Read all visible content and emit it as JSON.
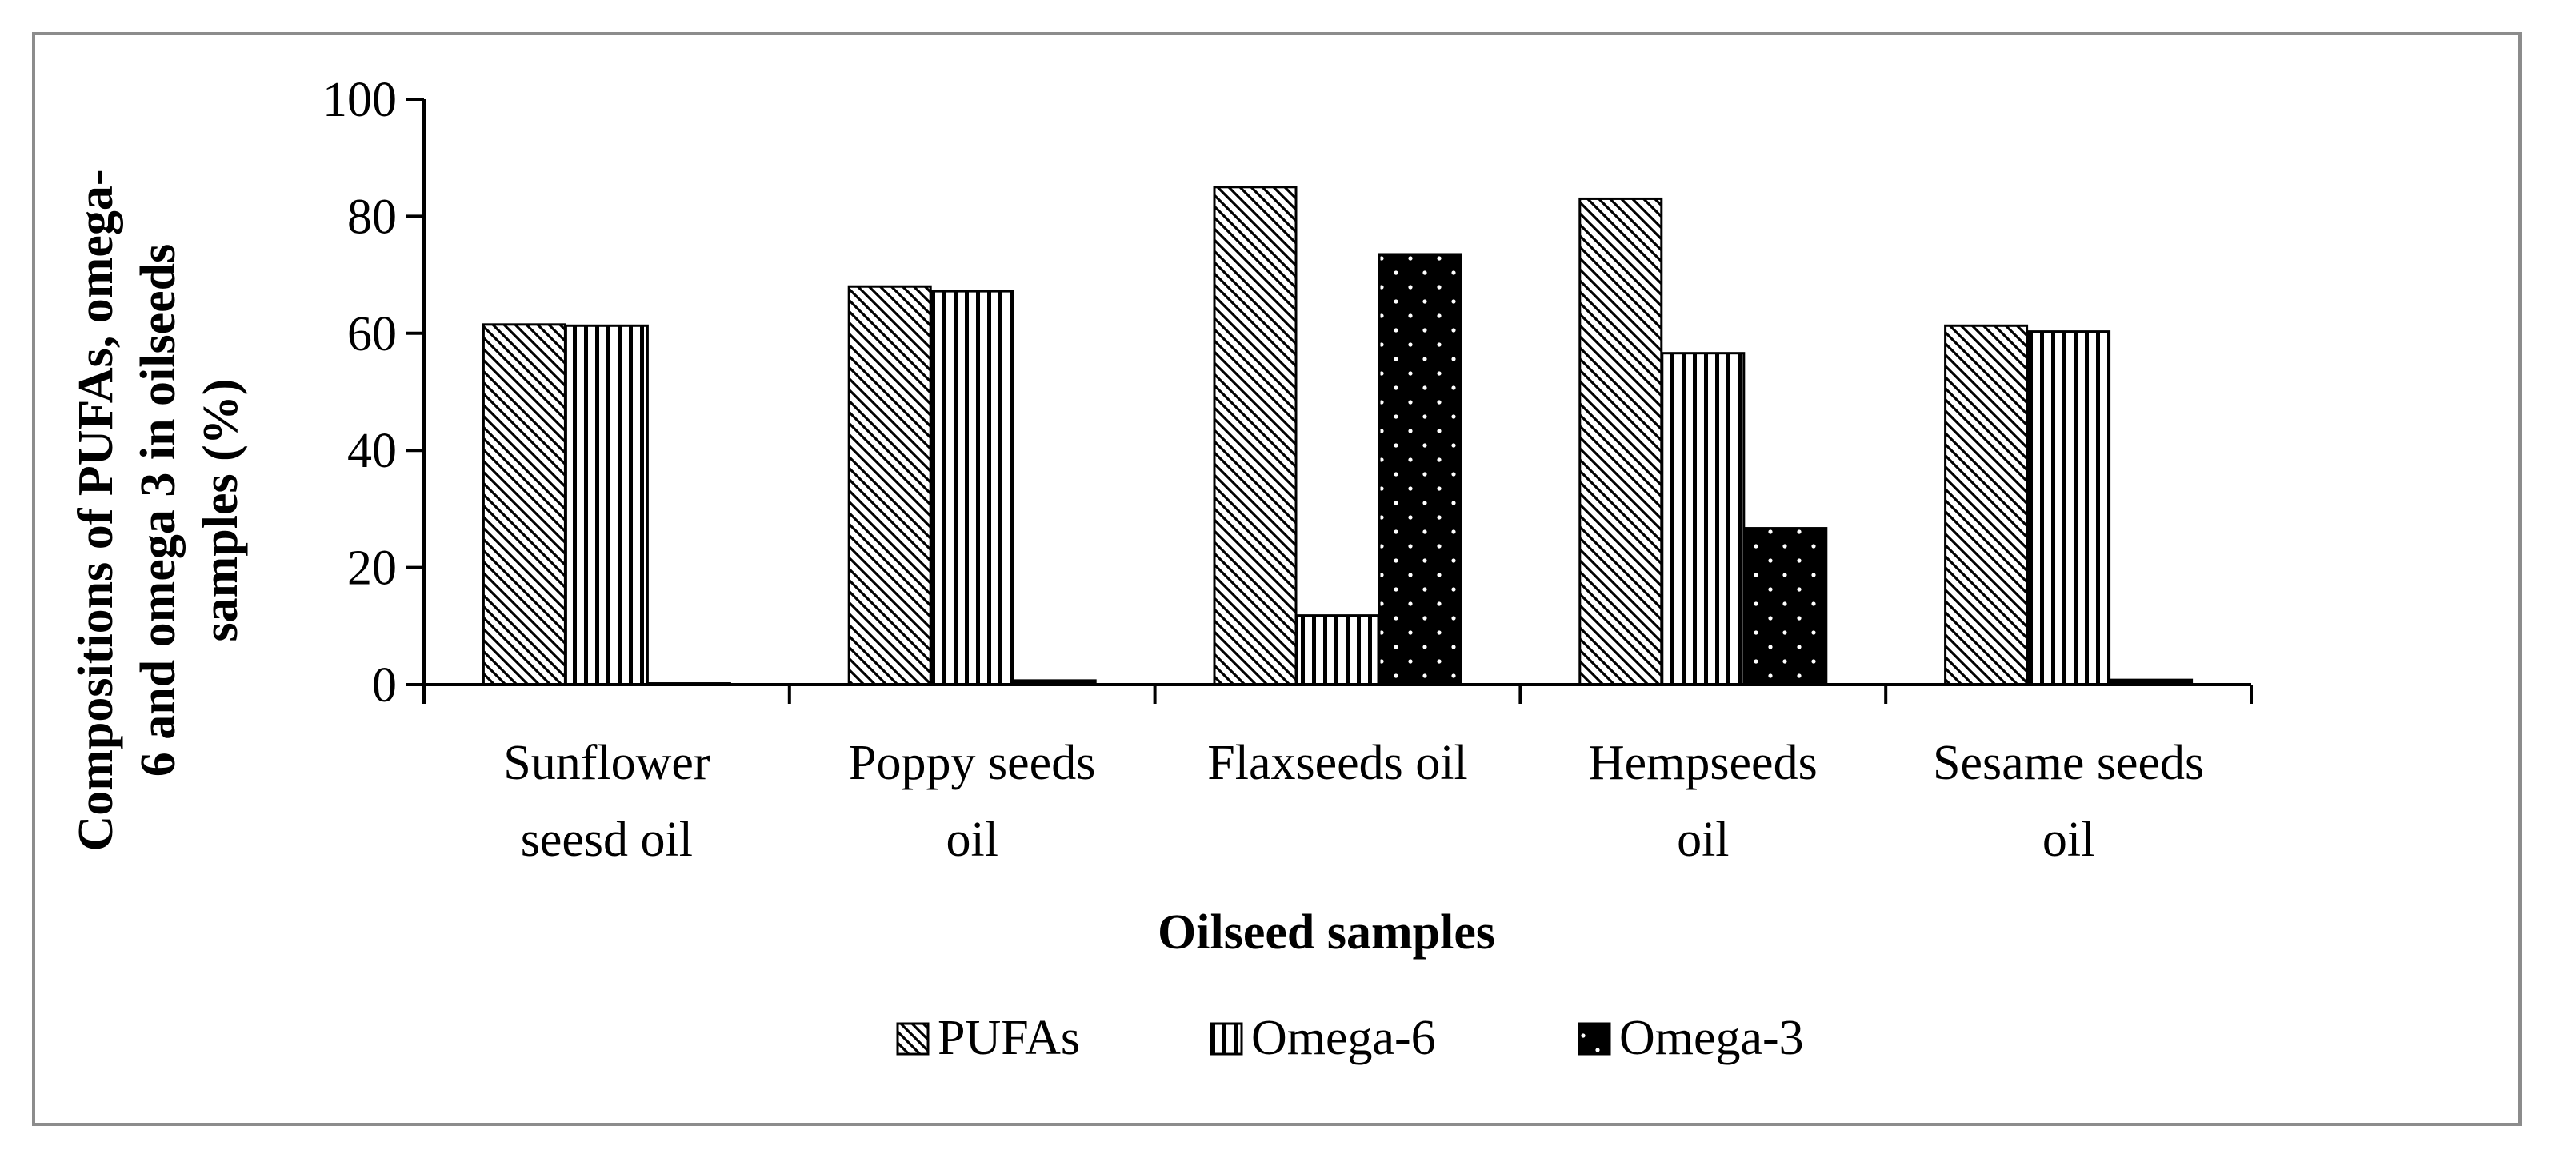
{
  "chart_data": {
    "type": "bar",
    "title": "",
    "xlabel": "Oilseed samples",
    "ylabel": "Compositions of PUFAs, omega-6 and omega 3 in oilseeds samples (%)",
    "ylabel_lines": [
      "Compositions of PUFAs, omega-",
      "6 and omega 3 in oilseeds",
      "samples (%)"
    ],
    "ylim": [
      0,
      100
    ],
    "yticks": [
      0,
      20,
      40,
      60,
      80,
      100
    ],
    "grid": false,
    "legend_position": "bottom",
    "categories": [
      [
        "Sunflower",
        "seesd oil"
      ],
      [
        "Poppy seeds",
        "oil"
      ],
      [
        "Flaxseeds oil"
      ],
      [
        "Hempseeds",
        "oil"
      ],
      [
        "Sesame seeds",
        "oil"
      ]
    ],
    "series": [
      {
        "name": "PUFAs",
        "pattern": "diagonal",
        "values": [
          61.5,
          68.0,
          85.0,
          83.0,
          61.3
        ]
      },
      {
        "name": "Omega-6",
        "pattern": "vertical",
        "values": [
          61.3,
          67.2,
          11.8,
          56.6,
          60.3
        ]
      },
      {
        "name": "Omega-3",
        "pattern": "dots",
        "values": [
          0.2,
          0.7,
          73.5,
          26.7,
          0.8
        ]
      }
    ]
  }
}
